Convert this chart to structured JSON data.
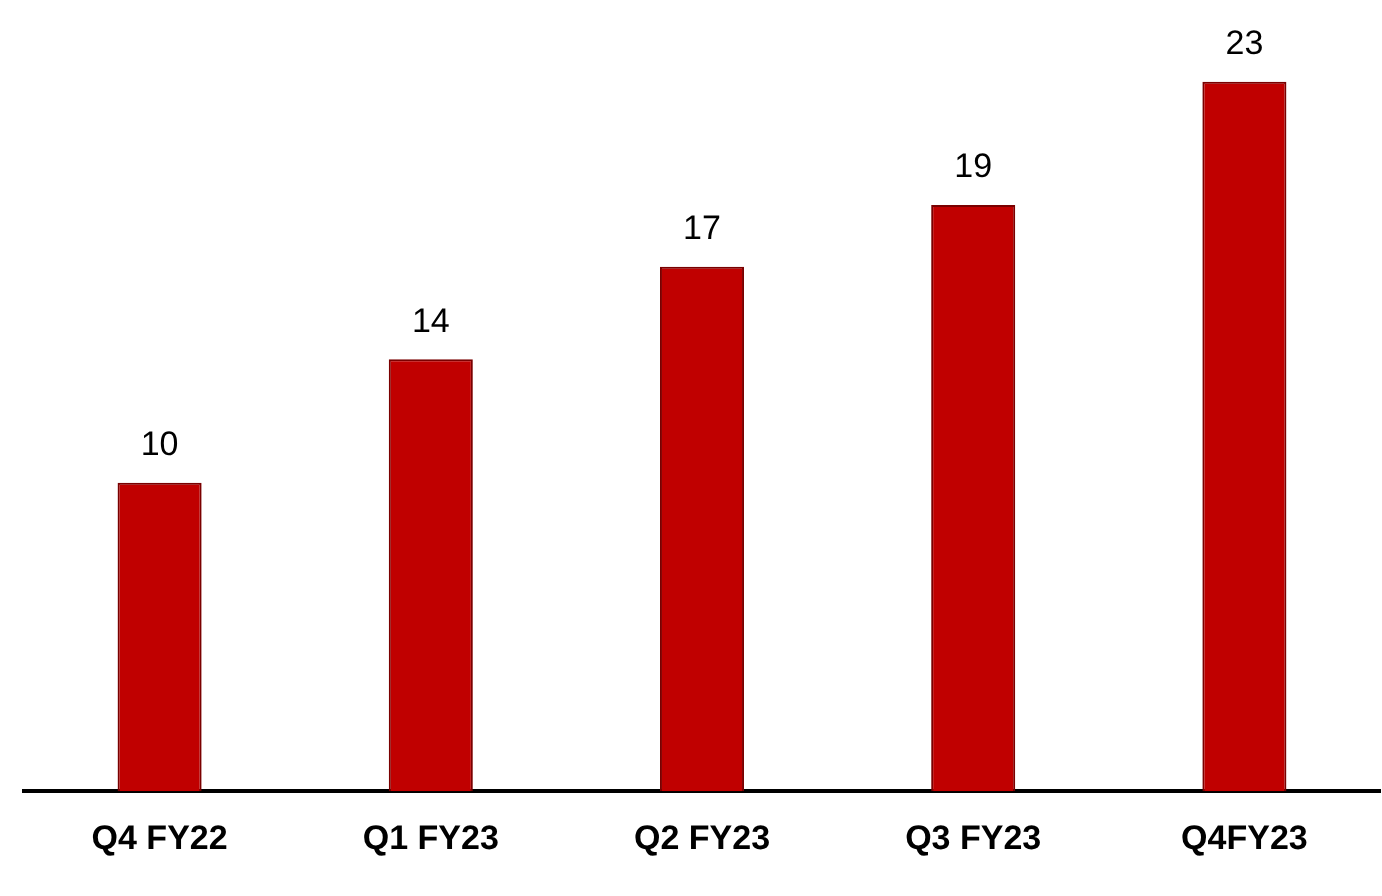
{
  "chart_data": {
    "type": "bar",
    "categories": [
      "Q4 FY22",
      "Q1 FY23",
      "Q2 FY23",
      "Q3 FY23",
      "Q4FY23"
    ],
    "values": [
      10,
      14,
      17,
      19,
      23
    ],
    "color": "#c00000",
    "data_labels": true,
    "grid": false,
    "legend": false,
    "tick_labels": "x"
  }
}
